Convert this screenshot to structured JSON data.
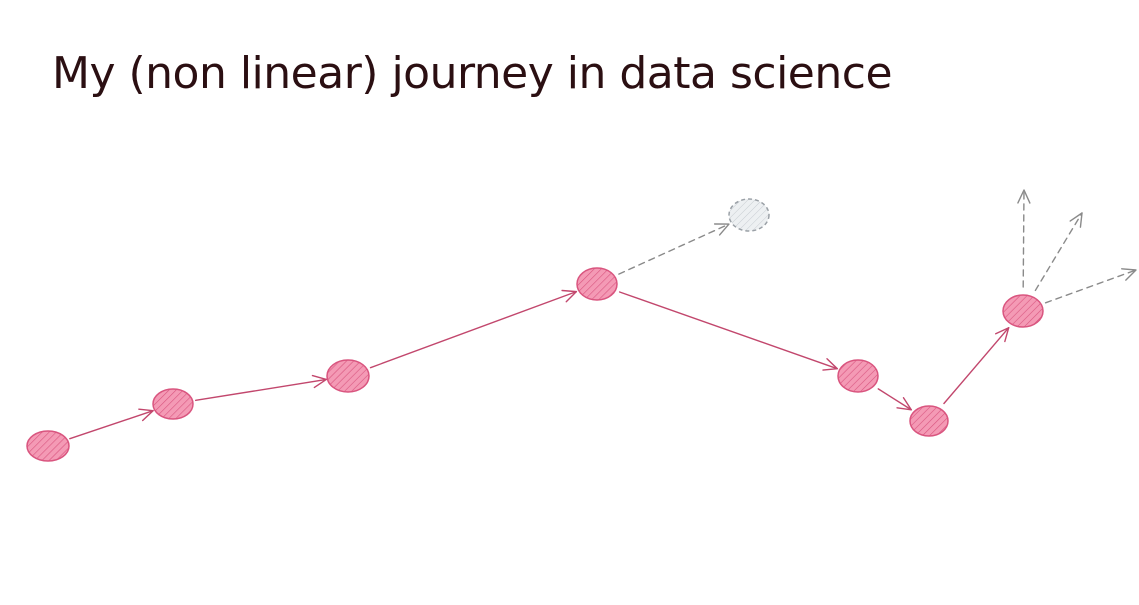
{
  "slide": {
    "title": "My (non linear) journey in data science"
  },
  "colors": {
    "title": "#2b0f12",
    "node_fill": "#f28fad",
    "node_stroke": "#d9557f",
    "path_arrow": "#c2476d",
    "ghost_arrow": "#8a8a8a",
    "ghost_node_fill": "#e8ecef",
    "ghost_node_stroke": "#9aa0a6"
  },
  "diagram": {
    "nodes": [
      {
        "id": "step-1"
      },
      {
        "id": "step-2"
      },
      {
        "id": "step-3"
      },
      {
        "id": "step-4"
      },
      {
        "id": "step-5"
      },
      {
        "id": "step-6"
      },
      {
        "id": "step-7"
      },
      {
        "id": "alternative-path",
        "style": "dashed-ghost"
      }
    ],
    "edges": [
      {
        "from": "step-1",
        "to": "step-2",
        "style": "solid"
      },
      {
        "from": "step-2",
        "to": "step-3",
        "style": "solid"
      },
      {
        "from": "step-3",
        "to": "step-4",
        "style": "solid"
      },
      {
        "from": "step-4",
        "to": "step-5",
        "style": "solid"
      },
      {
        "from": "step-5",
        "to": "step-6",
        "style": "solid"
      },
      {
        "from": "step-6",
        "to": "step-7",
        "style": "solid"
      },
      {
        "from": "step-4",
        "to": "alternative-path",
        "style": "dashed"
      },
      {
        "from": "step-7",
        "to": "future-up",
        "style": "dashed"
      },
      {
        "from": "step-7",
        "to": "future-up-right",
        "style": "dashed"
      },
      {
        "from": "step-7",
        "to": "future-right",
        "style": "dashed"
      }
    ]
  }
}
